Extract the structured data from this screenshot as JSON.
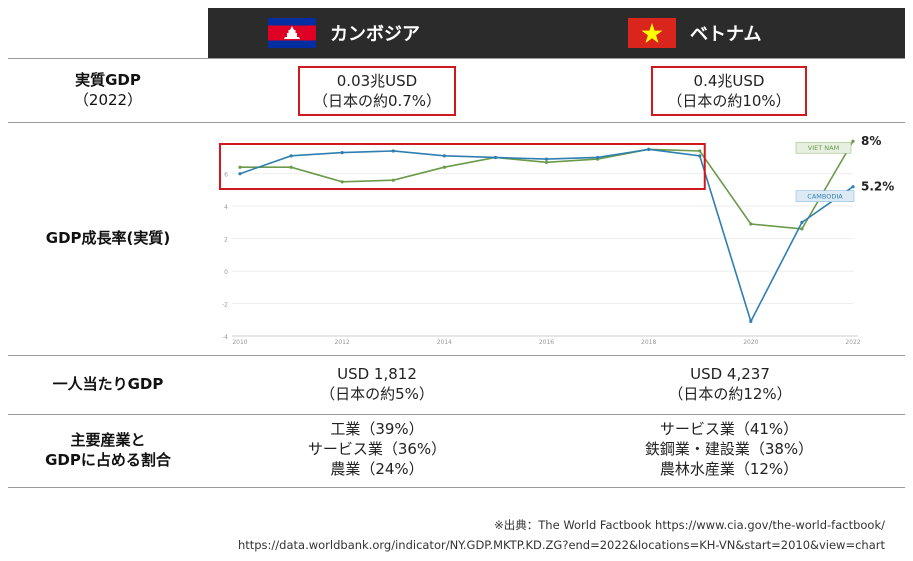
{
  "header": {
    "countries": [
      {
        "name": "カンボジア",
        "flag": "cambodia"
      },
      {
        "name": "ベトナム",
        "flag": "vietnam"
      }
    ]
  },
  "rows": {
    "real_gdp": {
      "label": "実質GDP",
      "sublabel": "（2022）",
      "kh": {
        "line1": "0.03兆USD",
        "line2": "（日本の約0.7%）"
      },
      "vn": {
        "line1": "0.4兆USD",
        "line2": "（日本の約10%）"
      }
    },
    "growth": {
      "label": "GDP成長率(実質)"
    },
    "per_capita": {
      "label": "一人当たりGDP",
      "kh": {
        "line1": "USD 1,812",
        "line2": "（日本の約5%）"
      },
      "vn": {
        "line1": "USD 4,237",
        "line2": "（日本の約12%）"
      }
    },
    "industries": {
      "label_line1": "主要産業と",
      "label_line2": "GDPに占める割合",
      "kh": [
        "工業（39%）",
        "サービス業（36%）",
        "農業（24%）"
      ],
      "vn": [
        "サービス業（41%）",
        "鉄鋼業・建設業（38%）",
        "農林水産業（12%）"
      ]
    }
  },
  "source": {
    "line1": "※出典：The World Factbook  https://www.cia.gov/the-world-factbook/",
    "line2": "https://data.worldbank.org/indicator/NY.GDP.MKTP.KD.ZG?end=2022&locations=KH-VN&start=2010&view=chart"
  },
  "colors": {
    "vietnam": "#6a9a4a",
    "cambodia": "#2e7fb0",
    "highlight": "#d0191f",
    "header": "#2b2b2b"
  },
  "chart_data": {
    "type": "line",
    "x": [
      2010,
      2011,
      2012,
      2013,
      2014,
      2015,
      2016,
      2017,
      2018,
      2019,
      2020,
      2021,
      2022
    ],
    "xticks": [
      "2010",
      "2012",
      "2014",
      "2016",
      "2018",
      "2020",
      "2022"
    ],
    "yticks": [
      "-4",
      "-2",
      "0",
      "2",
      "4",
      "6"
    ],
    "ylim": [
      -4,
      8.2
    ],
    "series": [
      {
        "name": "VIET NAM",
        "color": "#6a9a4a",
        "values": [
          6.4,
          6.4,
          5.5,
          5.6,
          6.4,
          7.0,
          6.7,
          6.9,
          7.5,
          7.4,
          2.9,
          2.6,
          8.0
        ]
      },
      {
        "name": "CAMBODIA",
        "color": "#2e7fb0",
        "values": [
          6.0,
          7.1,
          7.3,
          7.4,
          7.1,
          7.0,
          6.9,
          7.0,
          7.5,
          7.1,
          -3.1,
          3.0,
          5.2
        ]
      }
    ],
    "end_labels": {
      "vietnam": "8%",
      "cambodia": "5.2%"
    }
  }
}
